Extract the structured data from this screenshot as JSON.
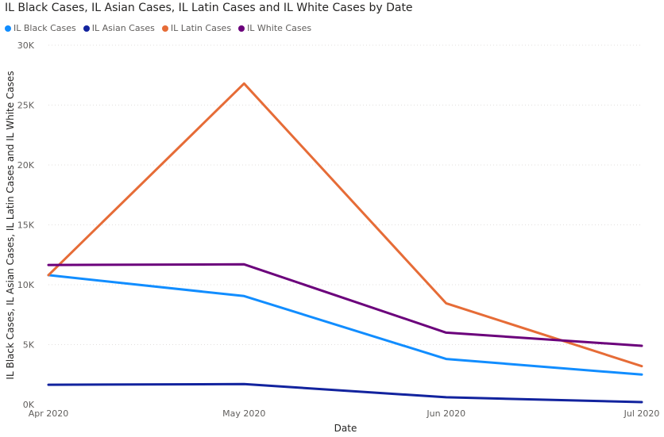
{
  "chart_data": {
    "type": "line",
    "title": "IL Black Cases, IL Asian Cases, IL Latin Cases and IL White Cases by Date",
    "xlabel": "Date",
    "ylabel": "IL Black Cases, IL Asian Cases, IL Latin Cases and IL White Cases",
    "categories": [
      "Apr 2020",
      "May 2020",
      "Jun 2020",
      "Jul 2020"
    ],
    "x_days": [
      0,
      30,
      61,
      91
    ],
    "ylim": [
      0,
      30000
    ],
    "yticks": [
      0,
      5000,
      10000,
      15000,
      20000,
      25000,
      30000
    ],
    "ytick_labels": [
      "0K",
      "5K",
      "10K",
      "15K",
      "20K",
      "25K",
      "30K"
    ],
    "grid": true,
    "legend_position": "top-left",
    "series": [
      {
        "name": "IL Black Cases",
        "color": "#118DFF",
        "values": [
          10800,
          9050,
          3800,
          2500
        ]
      },
      {
        "name": "IL Asian Cases",
        "color": "#12239E",
        "values": [
          1650,
          1700,
          600,
          200
        ]
      },
      {
        "name": "IL Latin Cases",
        "color": "#E66C37",
        "values": [
          10800,
          26800,
          8450,
          3200
        ]
      },
      {
        "name": "IL White Cases",
        "color": "#6B007B",
        "values": [
          11650,
          11700,
          6000,
          4900
        ]
      }
    ]
  }
}
